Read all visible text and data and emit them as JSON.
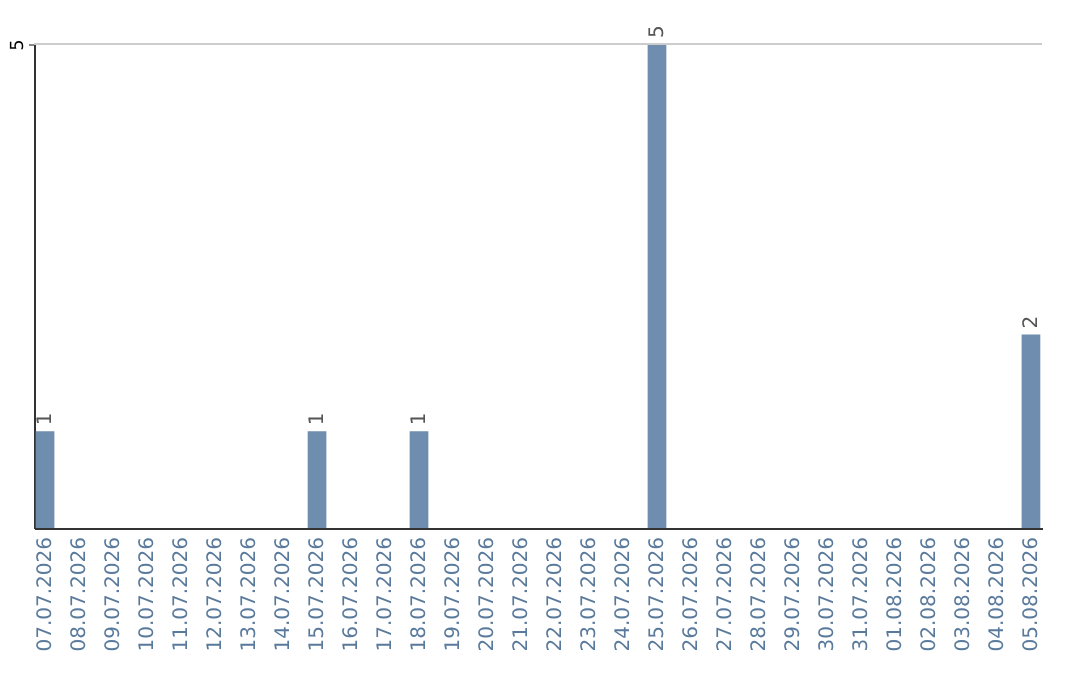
{
  "chart_data": {
    "type": "bar",
    "categories": [
      "07.07.2026",
      "08.07.2026",
      "09.07.2026",
      "10.07.2026",
      "11.07.2026",
      "12.07.2026",
      "13.07.2026",
      "14.07.2026",
      "15.07.2026",
      "16.07.2026",
      "17.07.2026",
      "18.07.2026",
      "19.07.2026",
      "20.07.2026",
      "21.07.2026",
      "22.07.2026",
      "23.07.2026",
      "24.07.2026",
      "25.07.2026",
      "26.07.2026",
      "27.07.2026",
      "28.07.2026",
      "29.07.2026",
      "30.07.2026",
      "31.07.2026",
      "01.08.2026",
      "02.08.2026",
      "03.08.2026",
      "04.08.2026",
      "05.08.2026"
    ],
    "values": [
      1,
      null,
      null,
      null,
      null,
      null,
      null,
      null,
      1,
      null,
      null,
      1,
      null,
      null,
      null,
      null,
      null,
      null,
      5,
      null,
      null,
      null,
      null,
      null,
      null,
      null,
      null,
      null,
      null,
      2
    ],
    "color": "#6e8daf",
    "ylim": [
      0,
      5
    ],
    "yticks": [
      5
    ],
    "ref_lines": [
      {
        "axis": "y",
        "value": 5,
        "color": "#cccccc"
      }
    ],
    "data_labels": true
  }
}
